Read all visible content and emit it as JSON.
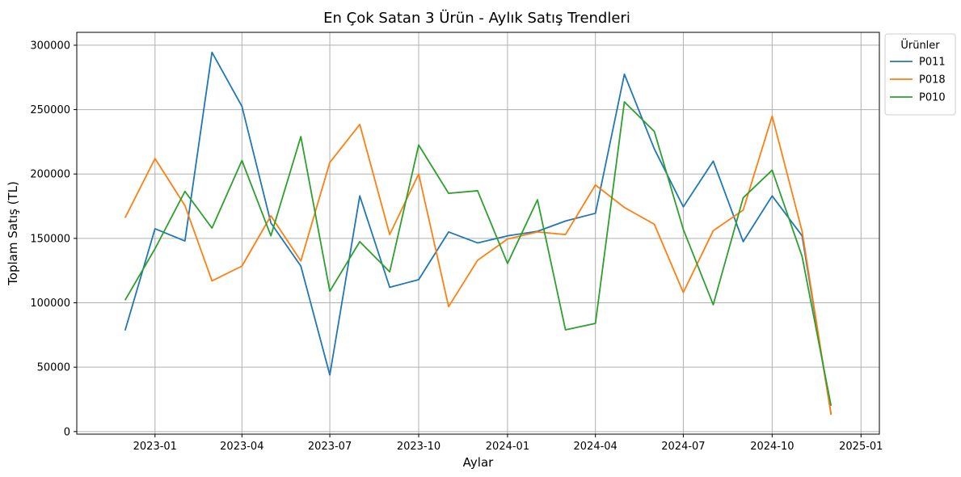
{
  "chart_data": {
    "type": "line",
    "title": "En Çok Satan 3 Ürün - Aylık Satış Trendleri",
    "xlabel": "Aylar",
    "ylabel": "Toplam Satış (TL)",
    "x": [
      "2022-12",
      "2023-01",
      "2023-02",
      "2023-03",
      "2023-04",
      "2023-05",
      "2023-06",
      "2023-07",
      "2023-08",
      "2023-09",
      "2023-10",
      "2023-11",
      "2023-12",
      "2024-01",
      "2024-02",
      "2024-03",
      "2024-04",
      "2024-05",
      "2024-06",
      "2024-07",
      "2024-08",
      "2024-09",
      "2024-10",
      "2024-11",
      "2024-12"
    ],
    "xlim": [
      "2022-10-12",
      "2025-01-20"
    ],
    "ylim": [
      -2000,
      310000
    ],
    "x_ticks": [
      "2023-01",
      "2023-04",
      "2023-07",
      "2023-10",
      "2024-01",
      "2024-04",
      "2024-07",
      "2024-10",
      "2025-01"
    ],
    "y_ticks": [
      0,
      50000,
      100000,
      150000,
      200000,
      250000,
      300000
    ],
    "grid": true,
    "legend_title": "Ürünler",
    "legend_position": "top-right outside",
    "series": [
      {
        "name": "P011",
        "color": "#1f77b4",
        "values": [
          78500,
          157500,
          148000,
          294500,
          252500,
          162000,
          128500,
          44000,
          183000,
          112000,
          118000,
          155000,
          146500,
          152000,
          155500,
          163500,
          169500,
          277500,
          219500,
          174500,
          210000,
          147500,
          183000,
          152000,
          13500
        ]
      },
      {
        "name": "P018",
        "color": "#ff7f0e",
        "values": [
          166000,
          212000,
          175500,
          117000,
          128500,
          167500,
          132500,
          209000,
          238500,
          153000,
          200000,
          97000,
          133000,
          149500,
          155000,
          153000,
          191500,
          174000,
          161000,
          108000,
          156000,
          172000,
          245000,
          155500,
          13000
        ]
      },
      {
        "name": "P010",
        "color": "#2ca02c",
        "values": [
          102000,
          142000,
          186500,
          158000,
          210500,
          152000,
          229000,
          109000,
          147500,
          124000,
          222500,
          185000,
          187000,
          130500,
          180000,
          79000,
          84000,
          256000,
          233000,
          157000,
          98500,
          181500,
          203000,
          136000,
          20000
        ]
      }
    ]
  }
}
